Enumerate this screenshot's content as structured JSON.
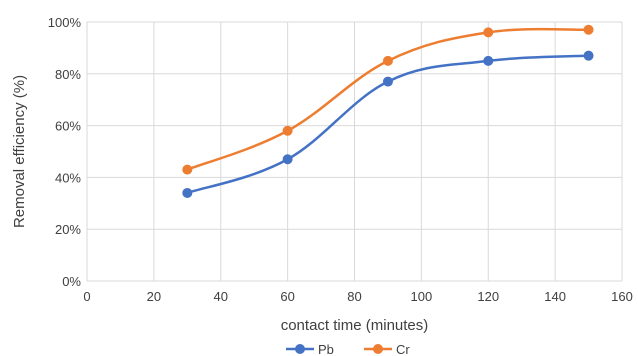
{
  "chart_data": {
    "type": "line",
    "title": "",
    "xlabel": "contact time (minutes)",
    "ylabel": "Removal efficiency (%)",
    "x_ticks": [
      0,
      20,
      40,
      60,
      80,
      100,
      120,
      140,
      160
    ],
    "y_ticks": [
      0,
      20,
      40,
      60,
      80,
      100
    ],
    "y_tick_suffix": "%",
    "xlim": [
      0,
      160
    ],
    "ylim": [
      0,
      100
    ],
    "grid": true,
    "legend_position": "bottom",
    "smooth": true,
    "series": [
      {
        "name": "Pb",
        "color": "#4472C4",
        "x": [
          30,
          60,
          90,
          120,
          150
        ],
        "y": [
          34,
          47,
          77,
          85,
          87
        ]
      },
      {
        "name": "Cr",
        "color": "#ED7D31",
        "x": [
          30,
          60,
          90,
          120,
          150
        ],
        "y": [
          43,
          58,
          85,
          96,
          97
        ]
      }
    ]
  }
}
